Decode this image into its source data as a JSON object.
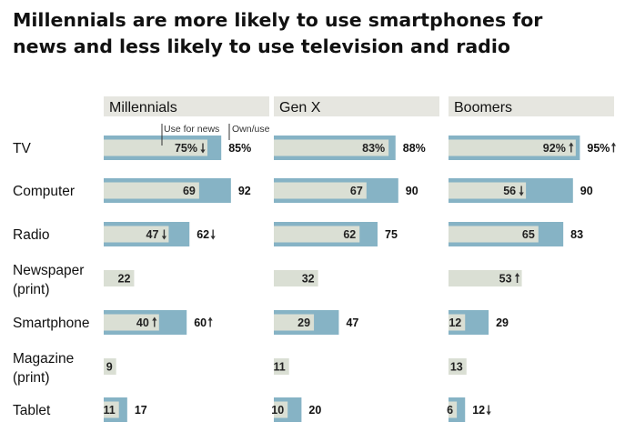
{
  "chart_data": {
    "type": "bar",
    "title": "Millennials are more likely to use smartphones for news and less likely to use television and radio",
    "title_lines": [
      "Millennials are more likely to use smartphones for",
      "news and less likely to use television and radio"
    ],
    "annotations": {
      "use_for_news": "Use for news",
      "own_use": "Own/use"
    },
    "categories": [
      {
        "label": "TV",
        "lines": [
          "TV"
        ]
      },
      {
        "label": "Computer",
        "lines": [
          "Computer"
        ]
      },
      {
        "label": "Radio",
        "lines": [
          "Radio"
        ]
      },
      {
        "label": "Newspaper (print)",
        "lines": [
          "Newspaper",
          "(print)"
        ]
      },
      {
        "label": "Smartphone",
        "lines": [
          "Smartphone"
        ]
      },
      {
        "label": "Magazine (print)",
        "lines": [
          "Magazine",
          "(print)"
        ]
      },
      {
        "label": "Tablet",
        "lines": [
          "Tablet"
        ]
      }
    ],
    "groups": [
      {
        "name": "Millennials",
        "own_use": [
          85,
          92,
          62,
          null,
          60,
          null,
          17
        ],
        "own_use_labels": [
          "85%",
          "92",
          "62",
          "",
          "60",
          "",
          "17"
        ],
        "own_use_arrows": [
          "",
          "",
          "down",
          "",
          "up",
          "",
          ""
        ],
        "use_for_news": [
          75,
          69,
          47,
          22,
          40,
          9,
          11
        ],
        "use_for_news_labels": [
          "75%",
          "69",
          "47",
          "22",
          "40",
          "9",
          "11"
        ],
        "use_for_news_arrows": [
          "down",
          "",
          "down",
          "",
          "up",
          "",
          ""
        ]
      },
      {
        "name": "Gen X",
        "own_use": [
          88,
          90,
          75,
          null,
          47,
          null,
          20
        ],
        "own_use_labels": [
          "88%",
          "90",
          "75",
          "",
          "47",
          "",
          "20"
        ],
        "own_use_arrows": [
          "",
          "",
          "",
          "",
          "",
          "",
          ""
        ],
        "use_for_news": [
          83,
          67,
          62,
          32,
          29,
          11,
          10
        ],
        "use_for_news_labels": [
          "83%",
          "67",
          "62",
          "32",
          "29",
          "11",
          "10"
        ],
        "use_for_news_arrows": [
          "",
          "",
          "",
          "",
          "",
          "",
          ""
        ]
      },
      {
        "name": "Boomers",
        "own_use": [
          95,
          90,
          83,
          null,
          29,
          null,
          12
        ],
        "own_use_labels": [
          "95%",
          "90",
          "83",
          "",
          "29",
          "",
          "12"
        ],
        "own_use_arrows": [
          "up",
          "",
          "",
          "",
          "",
          "",
          "down"
        ],
        "use_for_news": [
          92,
          56,
          65,
          53,
          12,
          13,
          6
        ],
        "use_for_news_labels": [
          "92%",
          "56",
          "65",
          "53",
          "12",
          "13",
          "6"
        ],
        "use_for_news_arrows": [
          "up",
          "down",
          "",
          "up",
          "",
          "",
          ""
        ]
      }
    ],
    "colors": {
      "own_use_bar": "#86b3c5",
      "news_bar": "#dadfd4",
      "header_band": "#e6e6e0"
    },
    "xlim": [
      0,
      100
    ],
    "legend": "inline annotation on first panel"
  }
}
